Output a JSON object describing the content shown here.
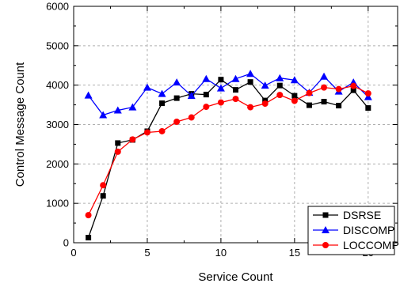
{
  "chart_data": {
    "type": "line",
    "title": "",
    "xlabel": "Service Count",
    "ylabel": "Control Message Count",
    "xlim": [
      0,
      22
    ],
    "ylim": [
      0,
      6000
    ],
    "x_ticks": [
      0,
      5,
      10,
      15,
      20
    ],
    "y_ticks": [
      0,
      1000,
      2000,
      3000,
      4000,
      5000,
      6000
    ],
    "grid": true,
    "legend_position": "bottom-right",
    "x": [
      1,
      2,
      3,
      4,
      5,
      6,
      7,
      8,
      9,
      10,
      11,
      12,
      13,
      14,
      15,
      16,
      17,
      18,
      19,
      20
    ],
    "series": [
      {
        "name": "DSRSE",
        "color": "#000000",
        "marker": "square",
        "values": [
          130,
          1190,
          2530,
          2610,
          2830,
          3540,
          3670,
          3780,
          3760,
          4140,
          3880,
          4080,
          3610,
          3990,
          3730,
          3490,
          3580,
          3480,
          3870,
          3420
        ]
      },
      {
        "name": "DISCOMP",
        "color": "#0000ff",
        "marker": "triangle",
        "values": [
          3740,
          3240,
          3360,
          3440,
          3940,
          3780,
          4070,
          3730,
          4160,
          3920,
          4160,
          4290,
          3990,
          4180,
          4130,
          3810,
          4220,
          3840,
          4070,
          3700
        ]
      },
      {
        "name": "LOCCOMP",
        "color": "#ff0000",
        "marker": "circle",
        "values": [
          700,
          1460,
          2310,
          2620,
          2800,
          2830,
          3070,
          3180,
          3450,
          3560,
          3650,
          3440,
          3530,
          3750,
          3600,
          3800,
          3940,
          3900,
          3980,
          3790
        ]
      }
    ]
  }
}
